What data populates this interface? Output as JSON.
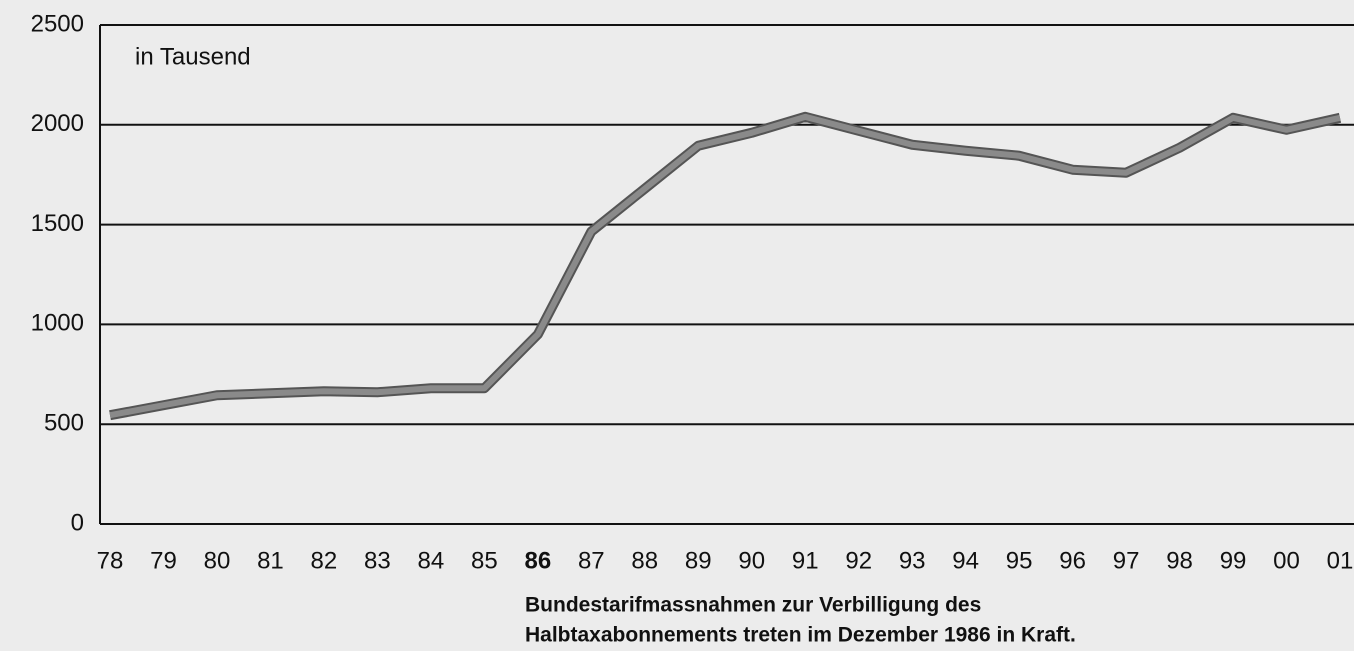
{
  "chart_data": {
    "type": "line",
    "annotation": "in Tausend",
    "note": [
      "Bundestarifmassnahmen zur Verbilligung des",
      "Halbtaxabonnements treten im Dezember 1986 in Kraft."
    ],
    "categories": [
      "78",
      "79",
      "80",
      "81",
      "82",
      "83",
      "84",
      "85",
      "86",
      "87",
      "88",
      "89",
      "90",
      "91",
      "92",
      "93",
      "94",
      "95",
      "96",
      "97",
      "98",
      "99",
      "00",
      "01"
    ],
    "highlight_category": "86",
    "values": [
      545,
      595,
      645,
      655,
      665,
      660,
      680,
      680,
      950,
      1465,
      1680,
      1895,
      1960,
      2040,
      1970,
      1900,
      1870,
      1845,
      1775,
      1760,
      1885,
      2035,
      1975,
      2035
    ],
    "color": "#8a8a8a",
    "ylim": [
      0,
      2500
    ],
    "yticks": [
      0,
      500,
      1000,
      1500,
      2000,
      2500
    ],
    "grid": true
  }
}
